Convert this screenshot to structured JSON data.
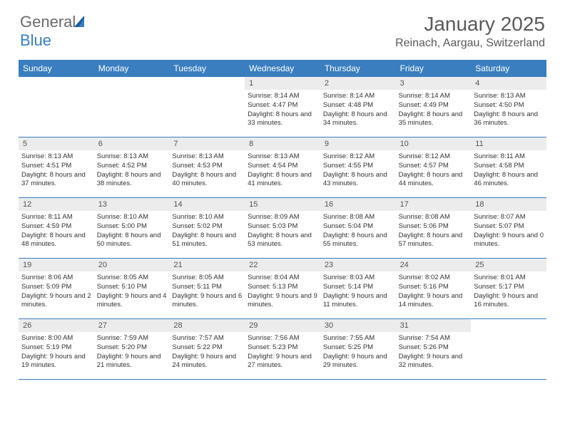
{
  "brand": {
    "part1": "General",
    "part2": "Blue"
  },
  "title": "January 2025",
  "location": "Reinach, Aargau, Switzerland",
  "colors": {
    "header_bar": "#3a7ebf",
    "day_label_bg": "#ececec",
    "text": "#333333",
    "title_text": "#5a5a5a",
    "rule": "#3a7ebf"
  },
  "typography": {
    "title_fontsize": 28,
    "location_fontsize": 16,
    "weekday_fontsize": 12,
    "daynum_fontsize": 11,
    "body_fontsize": 9.5
  },
  "weekdays": [
    "Sunday",
    "Monday",
    "Tuesday",
    "Wednesday",
    "Thursday",
    "Friday",
    "Saturday"
  ],
  "weeks": [
    [
      {
        "n": "",
        "sr": "",
        "ss": "",
        "dl": ""
      },
      {
        "n": "",
        "sr": "",
        "ss": "",
        "dl": ""
      },
      {
        "n": "",
        "sr": "",
        "ss": "",
        "dl": ""
      },
      {
        "n": "1",
        "sr": "Sunrise: 8:14 AM",
        "ss": "Sunset: 4:47 PM",
        "dl": "Daylight: 8 hours and 33 minutes."
      },
      {
        "n": "2",
        "sr": "Sunrise: 8:14 AM",
        "ss": "Sunset: 4:48 PM",
        "dl": "Daylight: 8 hours and 34 minutes."
      },
      {
        "n": "3",
        "sr": "Sunrise: 8:14 AM",
        "ss": "Sunset: 4:49 PM",
        "dl": "Daylight: 8 hours and 35 minutes."
      },
      {
        "n": "4",
        "sr": "Sunrise: 8:13 AM",
        "ss": "Sunset: 4:50 PM",
        "dl": "Daylight: 8 hours and 36 minutes."
      }
    ],
    [
      {
        "n": "5",
        "sr": "Sunrise: 8:13 AM",
        "ss": "Sunset: 4:51 PM",
        "dl": "Daylight: 8 hours and 37 minutes."
      },
      {
        "n": "6",
        "sr": "Sunrise: 8:13 AM",
        "ss": "Sunset: 4:52 PM",
        "dl": "Daylight: 8 hours and 38 minutes."
      },
      {
        "n": "7",
        "sr": "Sunrise: 8:13 AM",
        "ss": "Sunset: 4:53 PM",
        "dl": "Daylight: 8 hours and 40 minutes."
      },
      {
        "n": "8",
        "sr": "Sunrise: 8:13 AM",
        "ss": "Sunset: 4:54 PM",
        "dl": "Daylight: 8 hours and 41 minutes."
      },
      {
        "n": "9",
        "sr": "Sunrise: 8:12 AM",
        "ss": "Sunset: 4:55 PM",
        "dl": "Daylight: 8 hours and 43 minutes."
      },
      {
        "n": "10",
        "sr": "Sunrise: 8:12 AM",
        "ss": "Sunset: 4:57 PM",
        "dl": "Daylight: 8 hours and 44 minutes."
      },
      {
        "n": "11",
        "sr": "Sunrise: 8:11 AM",
        "ss": "Sunset: 4:58 PM",
        "dl": "Daylight: 8 hours and 46 minutes."
      }
    ],
    [
      {
        "n": "12",
        "sr": "Sunrise: 8:11 AM",
        "ss": "Sunset: 4:59 PM",
        "dl": "Daylight: 8 hours and 48 minutes."
      },
      {
        "n": "13",
        "sr": "Sunrise: 8:10 AM",
        "ss": "Sunset: 5:00 PM",
        "dl": "Daylight: 8 hours and 50 minutes."
      },
      {
        "n": "14",
        "sr": "Sunrise: 8:10 AM",
        "ss": "Sunset: 5:02 PM",
        "dl": "Daylight: 8 hours and 51 minutes."
      },
      {
        "n": "15",
        "sr": "Sunrise: 8:09 AM",
        "ss": "Sunset: 5:03 PM",
        "dl": "Daylight: 8 hours and 53 minutes."
      },
      {
        "n": "16",
        "sr": "Sunrise: 8:08 AM",
        "ss": "Sunset: 5:04 PM",
        "dl": "Daylight: 8 hours and 55 minutes."
      },
      {
        "n": "17",
        "sr": "Sunrise: 8:08 AM",
        "ss": "Sunset: 5:06 PM",
        "dl": "Daylight: 8 hours and 57 minutes."
      },
      {
        "n": "18",
        "sr": "Sunrise: 8:07 AM",
        "ss": "Sunset: 5:07 PM",
        "dl": "Daylight: 9 hours and 0 minutes."
      }
    ],
    [
      {
        "n": "19",
        "sr": "Sunrise: 8:06 AM",
        "ss": "Sunset: 5:09 PM",
        "dl": "Daylight: 9 hours and 2 minutes."
      },
      {
        "n": "20",
        "sr": "Sunrise: 8:05 AM",
        "ss": "Sunset: 5:10 PM",
        "dl": "Daylight: 9 hours and 4 minutes."
      },
      {
        "n": "21",
        "sr": "Sunrise: 8:05 AM",
        "ss": "Sunset: 5:11 PM",
        "dl": "Daylight: 9 hours and 6 minutes."
      },
      {
        "n": "22",
        "sr": "Sunrise: 8:04 AM",
        "ss": "Sunset: 5:13 PM",
        "dl": "Daylight: 9 hours and 9 minutes."
      },
      {
        "n": "23",
        "sr": "Sunrise: 8:03 AM",
        "ss": "Sunset: 5:14 PM",
        "dl": "Daylight: 9 hours and 11 minutes."
      },
      {
        "n": "24",
        "sr": "Sunrise: 8:02 AM",
        "ss": "Sunset: 5:16 PM",
        "dl": "Daylight: 9 hours and 14 minutes."
      },
      {
        "n": "25",
        "sr": "Sunrise: 8:01 AM",
        "ss": "Sunset: 5:17 PM",
        "dl": "Daylight: 9 hours and 16 minutes."
      }
    ],
    [
      {
        "n": "26",
        "sr": "Sunrise: 8:00 AM",
        "ss": "Sunset: 5:19 PM",
        "dl": "Daylight: 9 hours and 19 minutes."
      },
      {
        "n": "27",
        "sr": "Sunrise: 7:59 AM",
        "ss": "Sunset: 5:20 PM",
        "dl": "Daylight: 9 hours and 21 minutes."
      },
      {
        "n": "28",
        "sr": "Sunrise: 7:57 AM",
        "ss": "Sunset: 5:22 PM",
        "dl": "Daylight: 9 hours and 24 minutes."
      },
      {
        "n": "29",
        "sr": "Sunrise: 7:56 AM",
        "ss": "Sunset: 5:23 PM",
        "dl": "Daylight: 9 hours and 27 minutes."
      },
      {
        "n": "30",
        "sr": "Sunrise: 7:55 AM",
        "ss": "Sunset: 5:25 PM",
        "dl": "Daylight: 9 hours and 29 minutes."
      },
      {
        "n": "31",
        "sr": "Sunrise: 7:54 AM",
        "ss": "Sunset: 5:26 PM",
        "dl": "Daylight: 9 hours and 32 minutes."
      },
      {
        "n": "",
        "sr": "",
        "ss": "",
        "dl": ""
      }
    ]
  ]
}
